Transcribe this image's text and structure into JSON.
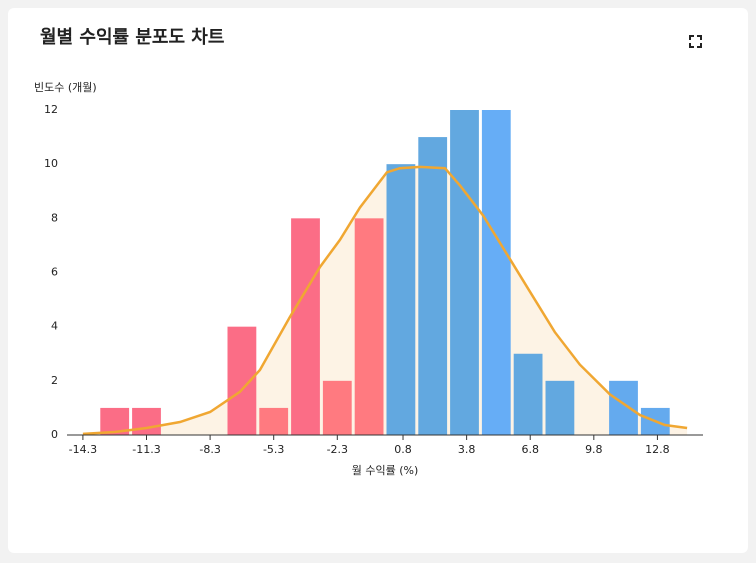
{
  "chart_data": {
    "type": "histogram",
    "title": "월별 수익률 분포도 차트",
    "y_label": "빈도수 (개월)",
    "x_label": "월 수익률 (%)",
    "bins": [
      -13.55,
      -12.05,
      -10.55,
      -9.05,
      -7.55,
      -6.05,
      -4.55,
      -3.05,
      -1.55,
      -0.05,
      1.45,
      2.95,
      4.45,
      5.95,
      7.45,
      8.95,
      10.45,
      11.95,
      13.45
    ],
    "values": [
      1,
      1,
      0,
      0,
      4,
      1,
      8,
      2,
      8,
      10,
      11,
      12,
      12,
      3,
      2,
      0,
      2,
      1
    ],
    "colors": [
      "#fb6d86",
      "#fb6d86",
      "#fb6d86",
      "#fb6d86",
      "#fb6d86",
      "#ff7a80",
      "#fb6d86",
      "#ff7a80",
      "#ff7a80",
      "#62a8e0",
      "#62a8e0",
      "#62a8e0",
      "#66adf6",
      "#62a8e0",
      "#62a8e0",
      "#62a8e0",
      "#64aaee",
      "#64aaee"
    ],
    "density": {
      "color": "#f0a732",
      "fill": "#fdf3e5",
      "x": [
        -14.3,
        -12.8,
        -11.3,
        -9.72,
        -8.3,
        -6.9,
        -5.95,
        -4.54,
        -3.12,
        -2.18,
        -1.23,
        0.04,
        0.65,
        1.6,
        2.78,
        3.5,
        4.58,
        5.84,
        6.78,
        7.96,
        9.14,
        10.56,
        11.97,
        13.15,
        14.2
      ],
      "values": [
        0.04,
        0.11,
        0.26,
        0.48,
        0.85,
        1.59,
        2.4,
        4.35,
        6.2,
        7.2,
        8.4,
        9.7,
        9.85,
        9.9,
        9.85,
        9.2,
        8.1,
        6.5,
        5.3,
        3.8,
        2.6,
        1.5,
        0.74,
        0.37,
        0.26
      ]
    },
    "xlim": [
      -15.05,
      14.95
    ],
    "ylim": [
      0,
      12
    ],
    "xticks": [
      -14.3,
      -11.3,
      -8.3,
      -5.3,
      -2.3,
      0.8,
      3.8,
      6.8,
      9.8,
      12.8
    ],
    "yticks": [
      0,
      2,
      4,
      6,
      8,
      10,
      12
    ],
    "grid": false
  }
}
